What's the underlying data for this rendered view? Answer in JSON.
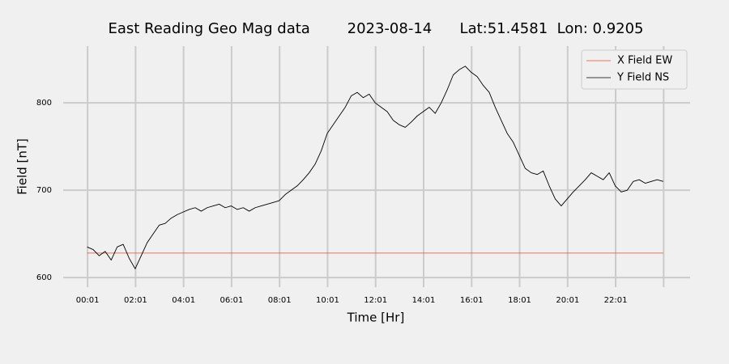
{
  "chart_data": {
    "type": "line",
    "title": "East Reading Geo Mag data        2023-08-14      Lat:51.4581  Lon: 0.9205",
    "x_label": "Time  [Hr]",
    "y_label": "Field  [nT]",
    "x": [
      0,
      0.25,
      0.5,
      0.75,
      1,
      1.25,
      1.5,
      1.75,
      2,
      2.25,
      2.5,
      2.75,
      3,
      3.25,
      3.5,
      3.75,
      4,
      4.25,
      4.5,
      4.75,
      5,
      5.25,
      5.5,
      5.75,
      6,
      6.25,
      6.5,
      6.75,
      7,
      7.25,
      7.5,
      7.75,
      8,
      8.25,
      8.5,
      8.75,
      9,
      9.25,
      9.5,
      9.75,
      10,
      10.25,
      10.5,
      10.75,
      11,
      11.25,
      11.5,
      11.75,
      12,
      12.25,
      12.5,
      12.75,
      13,
      13.25,
      13.5,
      13.75,
      14,
      14.25,
      14.5,
      14.75,
      15,
      15.25,
      15.5,
      15.75,
      16,
      16.25,
      16.5,
      16.75,
      17,
      17.25,
      17.5,
      17.75,
      18,
      18.25,
      18.5,
      18.75,
      19,
      19.25,
      19.5,
      19.75,
      20,
      20.25,
      20.5,
      20.75,
      21,
      21.25,
      21.5,
      21.75,
      22,
      22.25,
      22.5,
      22.75,
      23,
      23.25,
      23.5,
      23.75,
      24
    ],
    "series": [
      {
        "name": "X Field EW",
        "color": "#e24a33",
        "values": [
          628,
          628,
          628,
          628,
          628,
          628,
          628,
          628,
          628,
          628,
          628,
          628,
          628,
          628,
          628,
          628,
          628,
          628,
          628,
          628,
          628,
          628,
          628,
          628,
          628,
          628,
          628,
          628,
          628,
          628,
          628,
          628,
          628,
          628,
          628,
          628,
          628,
          628,
          628,
          628,
          628,
          628,
          628,
          628,
          628,
          628,
          628,
          628,
          628,
          628,
          628,
          628,
          628,
          628,
          628,
          628,
          628,
          628,
          628,
          628,
          628,
          628,
          628,
          628,
          628,
          628,
          628,
          628,
          628,
          628,
          628,
          628,
          628,
          628,
          628,
          628,
          628,
          628,
          628,
          628,
          628,
          628,
          628,
          628,
          628,
          628,
          628,
          628,
          628,
          628,
          628,
          628,
          628,
          628,
          628,
          628,
          628
        ]
      },
      {
        "name": "Y Field NS",
        "color": "#000000",
        "values": [
          635,
          632,
          625,
          630,
          620,
          635,
          638,
          622,
          610,
          625,
          640,
          650,
          660,
          662,
          668,
          672,
          675,
          678,
          680,
          676,
          680,
          682,
          684,
          680,
          682,
          678,
          680,
          676,
          680,
          682,
          684,
          686,
          688,
          695,
          700,
          705,
          712,
          720,
          730,
          745,
          765,
          775,
          785,
          795,
          808,
          812,
          806,
          810,
          800,
          795,
          790,
          780,
          775,
          772,
          778,
          785,
          790,
          795,
          788,
          800,
          815,
          832,
          838,
          842,
          835,
          830,
          820,
          812,
          795,
          780,
          765,
          755,
          740,
          725,
          720,
          718,
          722,
          705,
          690,
          682,
          690,
          698,
          705,
          712,
          720,
          716,
          712,
          720,
          705,
          698,
          700,
          710,
          712,
          708,
          710,
          712,
          710
        ]
      }
    ],
    "xlim": [
      -1,
      25.12
    ],
    "xticks": [
      {
        "value": 0.0167,
        "label": "00:01"
      },
      {
        "value": 2.0167,
        "label": "02:01"
      },
      {
        "value": 4.0167,
        "label": "04:01"
      },
      {
        "value": 6.0167,
        "label": "06:01"
      },
      {
        "value": 8.0167,
        "label": "08:01"
      },
      {
        "value": 10.0167,
        "label": "10:01"
      },
      {
        "value": 12.0167,
        "label": "12:01"
      },
      {
        "value": 14.0167,
        "label": "14:01"
      },
      {
        "value": 16.0167,
        "label": "16:01"
      },
      {
        "value": 18.0167,
        "label": "18:01"
      },
      {
        "value": 20.0167,
        "label": "20:01"
      },
      {
        "value": 22.0167,
        "label": "22:01"
      },
      {
        "value": 24.0167,
        "label": null
      }
    ],
    "ylim": [
      589,
      865
    ],
    "yticks": [
      600,
      700,
      800
    ],
    "grid": true,
    "legend": "upper right"
  }
}
